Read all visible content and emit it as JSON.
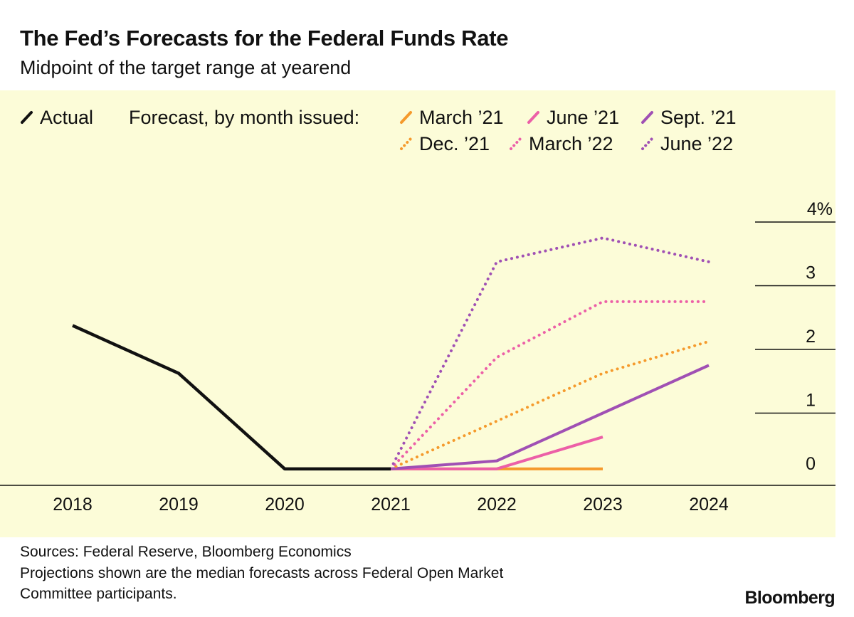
{
  "colors": {
    "actual": "#111111",
    "march21": "#f59a2c",
    "june21": "#ec5fa7",
    "sept21": "#a050b4",
    "dec21": "#f59a2c",
    "march22": "#ec5fa7",
    "june22": "#a050b4",
    "background": "#fcfcd8"
  },
  "legend": {
    "actual": "Actual",
    "forecast_prefix": "Forecast, by month issued:",
    "items": [
      "March ’21",
      "June ’21",
      "Sept. ’21",
      "Dec. ’21",
      "March ’22",
      "June ’22"
    ]
  },
  "footer": {
    "sources": "Sources: Federal Reserve, Bloomberg Economics",
    "note_line1": "Projections shown are the median forecasts across Federal Open Market",
    "note_line2": "Committee participants.",
    "logo": "Bloomberg"
  },
  "chart_data": {
    "type": "line",
    "title": "The Fed’s Forecasts for the Federal Funds Rate",
    "subtitle": "Midpoint of the target range at yearend",
    "x": [
      2018,
      2019,
      2020,
      2021,
      2022,
      2023,
      2024
    ],
    "x_tick_labels": [
      "2018",
      "2019",
      "2020",
      "2021",
      "2022",
      "2023",
      "2024"
    ],
    "y_ticks": [
      0,
      1,
      2,
      3,
      4
    ],
    "y_tick_labels": [
      "0",
      "1",
      "2",
      "3",
      "4%"
    ],
    "ylim": [
      0,
      4
    ],
    "xlabel": "",
    "ylabel": "",
    "series": [
      {
        "key": "actual",
        "name": "Actual",
        "style": "solid",
        "x": [
          2018,
          2019,
          2020,
          2021
        ],
        "values": [
          2.375,
          1.625,
          0.125,
          0.125
        ]
      },
      {
        "key": "march21",
        "name": "March ’21",
        "style": "solid",
        "x": [
          2021,
          2022,
          2023
        ],
        "values": [
          0.125,
          0.125,
          0.125
        ]
      },
      {
        "key": "june21",
        "name": "June ’21",
        "style": "solid",
        "x": [
          2021,
          2022,
          2023
        ],
        "values": [
          0.125,
          0.125,
          0.625
        ]
      },
      {
        "key": "sept21",
        "name": "Sept. ’21",
        "style": "solid",
        "x": [
          2021,
          2022,
          2023,
          2024
        ],
        "values": [
          0.125,
          0.25,
          1.0,
          1.75
        ]
      },
      {
        "key": "dec21",
        "name": "Dec. ’21",
        "style": "dotted",
        "x": [
          2021,
          2022,
          2023,
          2024
        ],
        "values": [
          0.125,
          0.875,
          1.625,
          2.125
        ]
      },
      {
        "key": "march22",
        "name": "March ’22",
        "style": "dotted",
        "x": [
          2021,
          2022,
          2023,
          2024
        ],
        "values": [
          0.125,
          1.875,
          2.75,
          2.75
        ]
      },
      {
        "key": "june22",
        "name": "June ’22",
        "style": "dotted",
        "x": [
          2021,
          2022,
          2023,
          2024
        ],
        "values": [
          0.125,
          3.375,
          3.75,
          3.375
        ]
      }
    ]
  }
}
